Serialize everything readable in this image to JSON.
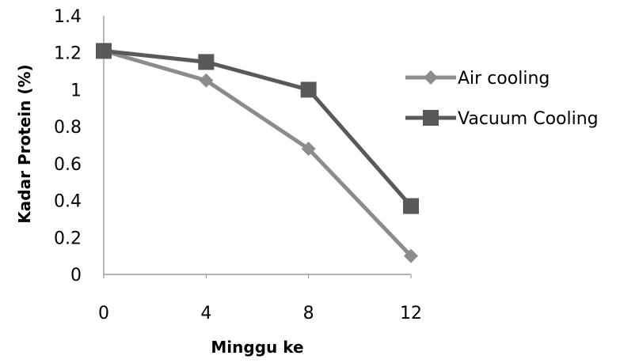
{
  "chart_data": {
    "type": "line",
    "x": [
      0,
      4,
      8,
      12
    ],
    "x_tick_labels": [
      "0",
      "4",
      "8",
      "12"
    ],
    "xlabel": "Minggu ke",
    "ylabel": "Kadar Protein (%)",
    "ylim": [
      0,
      1.4
    ],
    "y_ticks": [
      0,
      0.2,
      0.4,
      0.6,
      0.8,
      1,
      1.2,
      1.4
    ],
    "y_tick_labels": [
      "0",
      "0.2",
      "0.4",
      "0.6",
      "0.8",
      "1",
      "1.2",
      "1.4"
    ],
    "grid": false,
    "legend_position": "right",
    "series": [
      {
        "name": "Air cooling",
        "values": [
          1.21,
          1.05,
          0.68,
          0.1
        ],
        "color": "#8c8c8c",
        "marker": "diamond"
      },
      {
        "name": "Vacuum Cooling",
        "values": [
          1.21,
          1.15,
          1.0,
          0.37
        ],
        "color": "#595959",
        "marker": "square"
      }
    ]
  }
}
